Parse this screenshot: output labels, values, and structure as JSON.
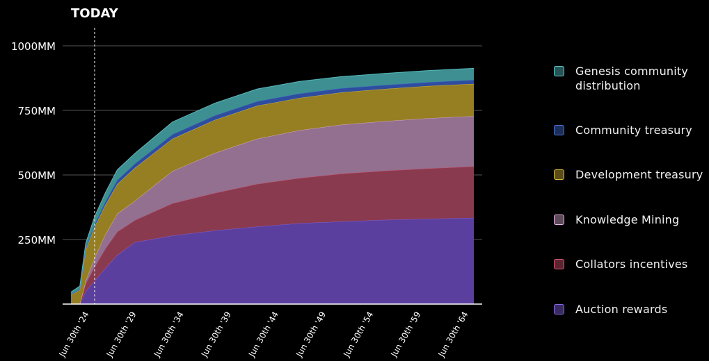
{
  "chart_data": {
    "type": "area",
    "stacked": true,
    "annotation": "TODAY",
    "annotation_x": "Jun 30th '24",
    "x_labels": [
      "Jun 30th '24",
      "Jun 30th '29",
      "Jun 30th '34",
      "Jun 30th '39",
      "Jun 30th '44",
      "Jun 30th '49",
      "Jun 30th '54",
      "Jun 30th '59",
      "Jun 30th '64"
    ],
    "y_ticks": [
      {
        "value": 250,
        "label": "250MM"
      },
      {
        "value": 500,
        "label": "500MM"
      },
      {
        "value": 750,
        "label": "750MM"
      },
      {
        "value": 1000,
        "label": "1000MM"
      }
    ],
    "ylim": [
      0,
      1000
    ],
    "x_years": [
      2023.1,
      2024.0,
      2024.6,
      2025.5,
      2026.6,
      2027.8,
      2029.6,
      2033.4,
      2037.7,
      2042.0,
      2046.3,
      2050.6,
      2054.9,
      2059.2,
      2064.0
    ],
    "series": [
      {
        "name": "Auction rewards",
        "color": "#5b3f9e",
        "values": [
          0,
          0,
          50,
          90,
          140,
          190,
          240,
          265,
          285,
          300,
          313,
          320,
          326,
          330,
          334
        ]
      },
      {
        "name": "Collators incentives",
        "color": "#8a3a4f",
        "values": [
          0,
          0,
          30,
          55,
          75,
          90,
          85,
          125,
          145,
          165,
          175,
          185,
          190,
          195,
          199
        ]
      },
      {
        "name": "Knowledge Mining",
        "color": "#93708f",
        "values": [
          0,
          0,
          10,
          35,
          55,
          70,
          75,
          125,
          155,
          175,
          185,
          190,
          192,
          194,
          195
        ]
      },
      {
        "name": "Development treasury",
        "color": "#957f22",
        "values": [
          35,
          55,
          120,
          120,
          115,
          115,
          128,
          125,
          128,
          128,
          125,
          125,
          125,
          125,
          125
        ]
      },
      {
        "name": "Community treasury",
        "color": "#2f4d9e",
        "values": [
          2,
          3,
          6,
          9,
          12,
          15,
          16,
          17,
          17,
          17,
          17,
          16,
          15,
          15,
          15
        ]
      },
      {
        "name": "Genesis community distribution",
        "color": "#3e8f91",
        "values": [
          10,
          12,
          20,
          30,
          35,
          40,
          40,
          48,
          48,
          48,
          47,
          45,
          45,
          45,
          45
        ]
      }
    ]
  },
  "legend": [
    {
      "label": "Genesis community distribution",
      "color": "#5fd0d3"
    },
    {
      "label": "Community treasury",
      "color": "#4c74e0"
    },
    {
      "label": "Development treasury",
      "color": "#e0c040"
    },
    {
      "label": "Knowledge Mining",
      "color": "#e8b8e4"
    },
    {
      "label": "Collators incentives",
      "color": "#e05a78"
    },
    {
      "label": "Auction rewards",
      "color": "#8b6cf0"
    }
  ]
}
